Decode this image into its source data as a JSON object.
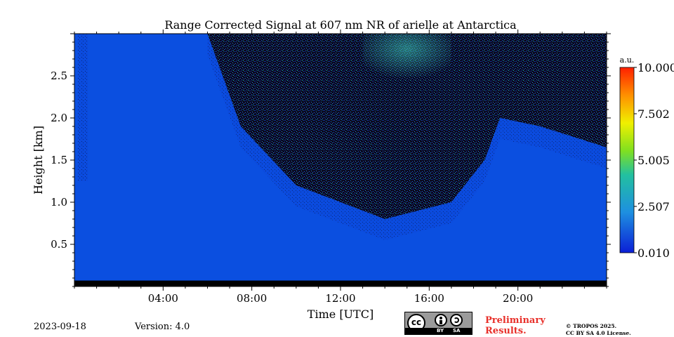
{
  "chart_data": {
    "type": "heatmap",
    "title": "Range Corrected Signal at 607 nm NR of arielle at Antarctica",
    "xlabel": "Time [UTC]",
    "ylabel": "Height [km]",
    "xlim": [
      0,
      24
    ],
    "ylim": [
      0,
      3.0
    ],
    "x_tick_values": [
      4,
      8,
      12,
      16,
      20
    ],
    "x_tick_labels": [
      "04:00",
      "08:00",
      "12:00",
      "16:00",
      "20:00"
    ],
    "y_tick_values": [
      0.5,
      1.0,
      1.5,
      2.0,
      2.5
    ],
    "y_tick_labels": [
      "0.5",
      "1.0",
      "1.5",
      "2.0",
      "2.5"
    ],
    "colorbar": {
      "unit": "a.u.",
      "range": [
        0.01,
        10.0
      ],
      "tick_values": [
        0.01,
        2.507,
        5.005,
        7.502,
        10.0
      ],
      "tick_labels": [
        "0.010",
        "2.507",
        "5.005",
        "7.502",
        "10.000"
      ]
    },
    "features": {
      "clear_signal_top_km": [
        [
          0,
          3.0
        ],
        [
          6.0,
          3.0
        ],
        [
          7.5,
          1.9
        ],
        [
          10,
          1.2
        ],
        [
          14,
          0.8
        ],
        [
          17,
          1.0
        ],
        [
          18.5,
          1.5
        ],
        [
          19.2,
          2.0
        ],
        [
          21,
          1.9
        ],
        [
          24,
          1.65
        ]
      ],
      "noise_region": "above boundary between 06:00 and 24:00",
      "high_signal_patch_time": [
        13,
        17
      ],
      "high_signal_patch_height_km": [
        2.4,
        3.0
      ],
      "missing_data_below_km": 0.07
    }
  },
  "footer": {
    "date": "2023-09-18",
    "version": "Version: 4.0",
    "preliminary_line1": "Preliminary",
    "preliminary_line2": "Results.",
    "copyright_line1": "© TROPOS 2025.",
    "copyright_line2": "CC BY SA 4.0 License.",
    "cc_label": "cc",
    "cc_by": "BY",
    "cc_sa": "SA"
  }
}
